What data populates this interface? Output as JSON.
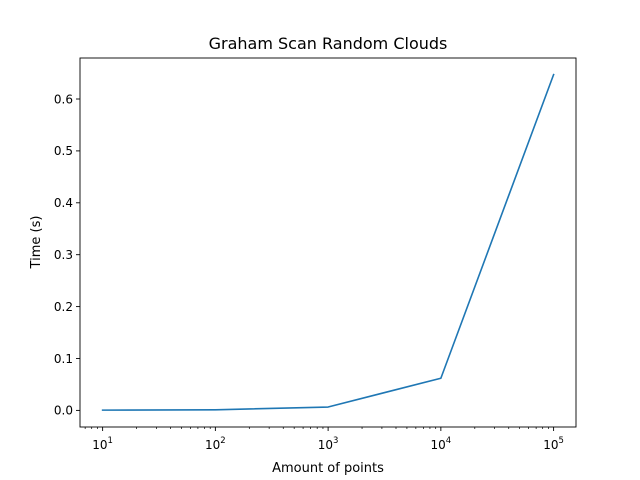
{
  "chart_data": {
    "type": "line",
    "title": "Graham Scan Random Clouds",
    "xlabel": "Amount of points",
    "ylabel": "Time (s)",
    "xscale": "log",
    "x": [
      10,
      100,
      1000,
      10000,
      100000
    ],
    "series": [
      {
        "values": [
          0.0005,
          0.0012,
          0.0065,
          0.062,
          0.647
        ],
        "color": "#1f77b4"
      }
    ],
    "xlim": [
      6.3,
      158000
    ],
    "ylim": [
      -0.032,
      0.679
    ],
    "xticks": [
      {
        "base": "10",
        "exp": "1",
        "value": 10
      },
      {
        "base": "10",
        "exp": "2",
        "value": 100
      },
      {
        "base": "10",
        "exp": "3",
        "value": 1000
      },
      {
        "base": "10",
        "exp": "4",
        "value": 10000
      },
      {
        "base": "10",
        "exp": "5",
        "value": 100000
      }
    ],
    "yticks": [
      "0.0",
      "0.1",
      "0.2",
      "0.3",
      "0.4",
      "0.5",
      "0.6"
    ],
    "grid": false,
    "legend": "none"
  }
}
